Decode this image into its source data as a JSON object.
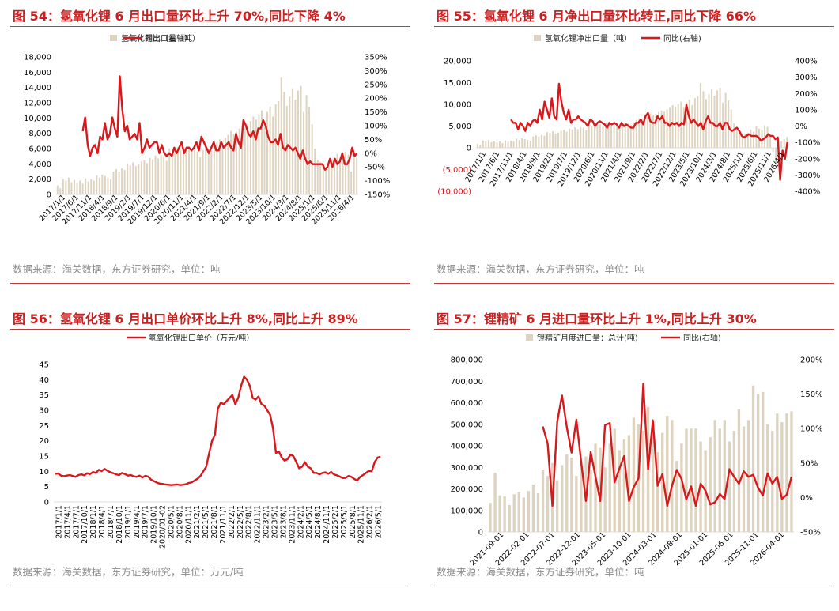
{
  "colors": {
    "bar": "#ddd3bf",
    "line": "#d7191c",
    "axis_text": "#000000",
    "title": "#cc1f1f",
    "source": "#8a8a8a",
    "rule": "#c03a3a"
  },
  "charts": [
    {
      "title": "图 54：氢氧化锂 6 月出口量环比上升 70%,同比下降 4%",
      "source": "数据来源：海关数据，东方证券研究，单位：吨",
      "chart_data": {
        "type": "bar+line",
        "legend": [
          "氢氧化锂出口量（吨）",
          "同比（右轴）"
        ],
        "y_left_ticks": [
          "18,000",
          "16,000",
          "14,000",
          "12,000",
          "10,000",
          "8,000",
          "6,000",
          "4,000",
          "2,000",
          "0"
        ],
        "y_right_ticks": [
          "350%",
          "300%",
          "250%",
          "200%",
          "150%",
          "100%",
          "50%",
          "0%",
          "-50%",
          "-100%",
          "-150%"
        ],
        "ylim_left": [
          0,
          18000
        ],
        "ylim_right": [
          -150,
          350
        ],
        "x_ticks": [
          "2017/1/1",
          "2017/6/1",
          "2017/11/1",
          "2018/4/1",
          "2018/9/1",
          "2019/2/1",
          "2019/7/1",
          "2019/12/1",
          "2020/6/1",
          "2020/11/1",
          "2021/4/1",
          "2021/9/1",
          "2022/2/1",
          "2022/7/1",
          "2022/12/1",
          "2023/5/1",
          "2023/10/1",
          "2024/3/1",
          "2024/8/1",
          "2025/1/1",
          "2025/6/1",
          "2025/11/1",
          "2026/4/1"
        ],
        "bars": [
          1200,
          800,
          2000,
          1800,
          2200,
          1600,
          1900,
          1500,
          1800,
          1400,
          2100,
          1700,
          2000,
          1800,
          2500,
          2200,
          2600,
          2400,
          2200,
          2000,
          3000,
          3300,
          3000,
          3400,
          3200,
          4000,
          3800,
          4200,
          3700,
          3900,
          4300,
          4500,
          4100,
          4800,
          4600,
          5100,
          4700,
          5200,
          5000,
          4400,
          6000,
          5500,
          5800,
          6200,
          5800,
          5400,
          6100,
          6300,
          5900,
          6000,
          5600,
          4900,
          5800,
          6200,
          6000,
          5700,
          6300,
          6800,
          7200,
          6900,
          7400,
          7800,
          8300,
          7900,
          8200,
          8600,
          9000,
          8700,
          9200,
          9600,
          10200,
          9800,
          10500,
          11000,
          9600,
          10800,
          11500,
          10200,
          11800,
          12200,
          15300,
          13400,
          11600,
          12800,
          13900,
          12400,
          13600,
          14200,
          10800,
          13000,
          11400,
          9200,
          6000,
          4500,
          4200,
          3800,
          3500,
          3900,
          4600,
          4100,
          5300,
          4800,
          4500,
          5600,
          5200,
          3000,
          5800,
          4800
        ],
        "line_start_index": 9,
        "line": [
          80,
          130,
          30,
          -10,
          20,
          30,
          0,
          60,
          50,
          110,
          50,
          70,
          130,
          90,
          60,
          280,
          160,
          80,
          100,
          50,
          60,
          70,
          50,
          110,
          0,
          20,
          50,
          20,
          30,
          40,
          40,
          0,
          30,
          0,
          -10,
          0,
          -10,
          20,
          0,
          20,
          40,
          0,
          20,
          20,
          10,
          20,
          40,
          10,
          60,
          40,
          20,
          0,
          20,
          40,
          10,
          10,
          40,
          20,
          30,
          40,
          20,
          10,
          70,
          40,
          20,
          120,
          100,
          70,
          60,
          80,
          50,
          90,
          90,
          120,
          100,
          60,
          40,
          40,
          50,
          30,
          70,
          20,
          10,
          30,
          20,
          10,
          20,
          0,
          -20,
          10,
          -20,
          -40,
          -30,
          -40,
          -40,
          -40,
          -40,
          -40,
          -60,
          -50,
          -20,
          -50,
          -20,
          -40,
          -30,
          0,
          -40,
          -40,
          -20,
          20,
          -10,
          0
        ]
      }
    },
    {
      "title": "图 55：氢氧化锂 6 月净出口量环比转正,同比下降 66%",
      "source": "数据来源：海关数据，东方证券研究，单位：吨",
      "chart_data": {
        "type": "bar+line",
        "legend": [
          "氢氧化锂净出口量（吨）",
          "同比(右轴)"
        ],
        "y_left_ticks": [
          "20,000",
          "15,000",
          "10,000",
          "5,000",
          "0",
          "(5,000)",
          "(10,000)"
        ],
        "y_right_ticks": [
          "400%",
          "300%",
          "200%",
          "100%",
          "0%",
          "-100%",
          "-200%",
          "-300%",
          "-400%"
        ],
        "ylim_left": [
          -10000,
          20000
        ],
        "ylim_right": [
          -400,
          400
        ],
        "x_ticks": [
          "2017/1/1",
          "2017/6/1",
          "2017/11/1",
          "2018/4/1",
          "2018/9/1",
          "2019/2/1",
          "2019/7/1",
          "2019/12/1",
          "2020/6/1",
          "2020/11/1",
          "2021/4/1",
          "2021/9/1",
          "2022/2/1",
          "2022/7/1",
          "2022/12/1",
          "2023/5/1",
          "2023/10/1",
          "2024/3/1",
          "2024/8/1",
          "2025/1/1",
          "2025/6/1",
          "2025/11/1",
          "2026/4/1"
        ],
        "bars": [
          900,
          600,
          1700,
          1500,
          1800,
          1300,
          1500,
          1200,
          1500,
          1100,
          1700,
          1400,
          1600,
          1500,
          2100,
          1800,
          2200,
          2000,
          1800,
          1600,
          2600,
          2900,
          2600,
          3000,
          2800,
          3600,
          3400,
          3800,
          3300,
          3500,
          3900,
          4100,
          3700,
          4400,
          4200,
          4700,
          4300,
          4800,
          4600,
          4000,
          5600,
          5100,
          5400,
          5800,
          5400,
          5000,
          5700,
          5900,
          5500,
          5600,
          5200,
          4500,
          5400,
          5800,
          5600,
          5300,
          5900,
          6400,
          6800,
          6500,
          7000,
          7400,
          7900,
          7500,
          7800,
          8200,
          8600,
          8300,
          8800,
          9200,
          9800,
          9400,
          10100,
          10600,
          9200,
          10400,
          11100,
          9800,
          11400,
          11800,
          14900,
          13000,
          11200,
          12400,
          13500,
          12000,
          13200,
          13800,
          10400,
          12600,
          11000,
          8800,
          5600,
          4100,
          3800,
          3400,
          3100,
          3500,
          4200,
          3700,
          4900,
          4400,
          4100,
          5200,
          4800,
          2600,
          -1000,
          -3500,
          -2000,
          1500,
          2000,
          2500
        ],
        "line_start_index": 12,
        "line": [
          40,
          20,
          20,
          -20,
          20,
          0,
          -30,
          20,
          0,
          30,
          40,
          20,
          100,
          40,
          150,
          100,
          50,
          170,
          60,
          40,
          260,
          150,
          80,
          40,
          100,
          20,
          40,
          40,
          60,
          40,
          30,
          20,
          0,
          40,
          30,
          0,
          20,
          30,
          20,
          10,
          -10,
          20,
          10,
          20,
          10,
          -10,
          20,
          0,
          10,
          0,
          -10,
          -10,
          20,
          20,
          40,
          10,
          60,
          80,
          30,
          20,
          20,
          60,
          40,
          60,
          20,
          20,
          0,
          20,
          10,
          20,
          0,
          20,
          10,
          130,
          60,
          20,
          40,
          20,
          0,
          20,
          -20,
          30,
          60,
          20,
          20,
          0,
          0,
          20,
          -20,
          20,
          20,
          -20,
          -30,
          -20,
          -10,
          -30,
          -60,
          -70,
          -60,
          -50,
          -60,
          -60,
          -60,
          -70,
          -90,
          -80,
          -70,
          -50,
          -60,
          -60,
          -80,
          -70,
          -330,
          -150,
          -200,
          -100
        ]
      }
    },
    {
      "title": "图 56：氢氧化锂 6 月出口单价环比上升 8%,同比上升 89%",
      "source": "数据来源：海关数据，东方证券研究，单位：万元/吨",
      "chart_data": {
        "type": "line",
        "legend": [
          "氢氧化锂出口单价（万元/吨）"
        ],
        "y_ticks": [
          "45",
          "40",
          "35",
          "30",
          "25",
          "20",
          "15",
          "10",
          "5",
          "0"
        ],
        "ylim": [
          0,
          45
        ],
        "x_ticks": [
          "2017/1/1",
          "2017/4/1",
          "2017/7/1",
          "2017/10/1",
          "2018/1/1",
          "2018/4/1",
          "2018/7/1",
          "2018/10/1",
          "2019/1/1",
          "2019/4/1",
          "2019/7/1",
          "2019/10/1",
          "2020/01-02",
          "2020/5/1",
          "2020/8/1",
          "2020/11/1",
          "2021/2/1",
          "2021/5/1",
          "2021/8/1",
          "2021/11/1",
          "2022/2/1",
          "2022/5/1",
          "2022/8/1",
          "2022/11/1",
          "2023/2/1",
          "2023/5/1",
          "2023/8/1",
          "2023/11/1",
          "2024/2/1",
          "2024/5/1",
          "2024/8/1",
          "2024/11/1",
          "2025/2/1",
          "2025/5/1",
          "2025/8/1",
          "2025/11/1",
          "2026/2/1",
          "2026/5/1"
        ],
        "line": [
          9.2,
          9.3,
          8.6,
          8.4,
          8.6,
          8.8,
          8.5,
          8.2,
          8.8,
          9.0,
          8.7,
          9.4,
          9.1,
          9.8,
          9.5,
          10.5,
          10.1,
          10.8,
          10.2,
          9.7,
          9.4,
          9.0,
          8.8,
          9.5,
          9.1,
          8.6,
          8.8,
          8.4,
          8.2,
          8.6,
          8.0,
          8.5,
          8.3,
          7.3,
          6.8,
          6.3,
          6.0,
          5.9,
          5.7,
          5.6,
          5.5,
          5.6,
          5.7,
          5.5,
          5.6,
          5.8,
          6.2,
          6.4,
          7.0,
          7.6,
          8.5,
          10.0,
          11.5,
          16.0,
          20.0,
          22.0,
          30.5,
          32.5,
          32.0,
          33.0,
          34.0,
          35.0,
          32.0,
          34.0,
          38.0,
          41.0,
          40.0,
          38.0,
          34.0,
          33.5,
          34.5,
          32.0,
          31.5,
          30.0,
          28.5,
          24.0,
          16.0,
          16.5,
          14.5,
          13.5,
          14.0,
          15.5,
          15.0,
          13.0,
          11.0,
          11.5,
          13.0,
          11.5,
          11.0,
          9.5,
          9.5,
          9.0,
          9.5,
          9.7,
          9.2,
          9.8,
          9.0,
          8.7,
          8.3,
          7.8,
          7.9,
          8.5,
          8.2,
          7.5,
          7.0,
          8.2,
          8.8,
          9.5,
          10.2,
          10.0,
          13.0,
          14.5,
          14.8
        ]
      }
    },
    {
      "title": "图 57：锂精矿 6 月进口量环比上升 1%,同比上升 30%",
      "source": "数据来源：海关数据，东方证券研究，单位：吨",
      "chart_data": {
        "type": "bar+line",
        "legend": [
          "锂精矿月度进口量：总计(吨)",
          "同比(右轴)"
        ],
        "y_left_ticks": [
          "800,000",
          "700,000",
          "600,000",
          "500,000",
          "400,000",
          "300,000",
          "200,000",
          "100,000",
          "0"
        ],
        "y_right_ticks": [
          "200%",
          "150%",
          "100%",
          "50%",
          "0%",
          "-50%"
        ],
        "ylim_left": [
          0,
          800000
        ],
        "ylim_right": [
          -50,
          200
        ],
        "x_ticks": [
          "2021-09-01",
          "2022-02-01",
          "2022-07-01",
          "2022-12-01",
          "2023-05-01",
          "2023-10-01",
          "2024-03-01",
          "2024-08-01",
          "2025-01-01",
          "2025-06-01",
          "2025-11-01",
          "2026-04-01"
        ],
        "bars": [
          135000,
          275000,
          170000,
          165000,
          125000,
          175000,
          185000,
          160000,
          190000,
          220000,
          180000,
          290000,
          260000,
          320000,
          240000,
          310000,
          360000,
          345000,
          260000,
          330000,
          350000,
          290000,
          410000,
          390000,
          300000,
          410000,
          480000,
          380000,
          430000,
          450000,
          530000,
          500000,
          470000,
          580000,
          510000,
          370000,
          460000,
          540000,
          520000,
          330000,
          410000,
          480000,
          480000,
          480000,
          420000,
          380000,
          440000,
          520000,
          480000,
          520000,
          420000,
          470000,
          570000,
          490000,
          520000,
          680000,
          640000,
          650000,
          500000,
          470000,
          550000,
          510000,
          550000,
          560000
        ],
        "line_start_index": 11,
        "line": [
          103,
          78,
          -12,
          110,
          148,
          102,
          65,
          113,
          52,
          -5,
          66,
          30,
          -5,
          105,
          108,
          22,
          42,
          60,
          -5,
          15,
          28,
          165,
          41,
          112,
          17,
          34,
          -12,
          17,
          40,
          27,
          -3,
          16,
          -12,
          20,
          10,
          -10,
          -7,
          5,
          -2,
          41,
          30,
          20,
          38,
          30,
          33,
          14,
          3,
          35,
          20,
          30,
          -2,
          4,
          30
        ]
      }
    }
  ]
}
